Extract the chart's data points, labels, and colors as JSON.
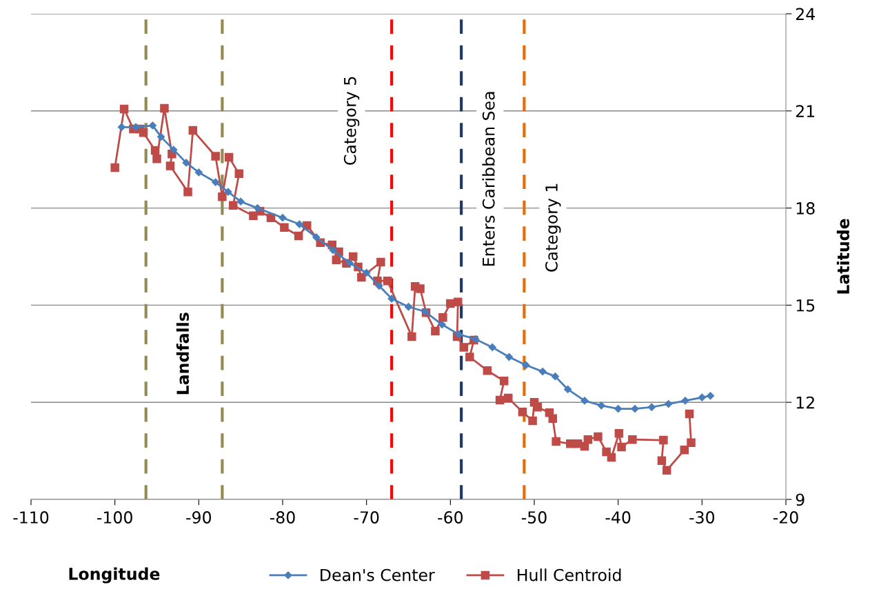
{
  "chart_data": {
    "type": "line",
    "xlabel": "Longitude",
    "ylabel": "Latitude",
    "xlim": [
      -110,
      -20
    ],
    "xticks": [
      -110,
      -100,
      -90,
      -80,
      -70,
      -60,
      -50,
      -40,
      -30,
      -20
    ],
    "ylim": [
      9,
      24
    ],
    "yticks": [
      9,
      12,
      15,
      18,
      21,
      24
    ],
    "grid": "y",
    "legend": "bottom",
    "line_style": "solid",
    "series": [
      {
        "name": "Dean's Center",
        "color": "#4a7ebb",
        "marker": "diamond",
        "x": [
          -29,
          -30,
          -32,
          -34,
          -36,
          -38,
          -40,
          -42,
          -44,
          -46,
          -47.5,
          -49,
          -51,
          -53,
          -55,
          -57,
          -59,
          -61,
          -63,
          -65,
          -67,
          -68.5,
          -70,
          -72,
          -74,
          -76,
          -78,
          -80,
          -83,
          -85,
          -86.5,
          -88,
          -90,
          -91.5,
          -93,
          -94.5,
          -95.5,
          -97.5,
          -99.2
        ],
        "values": [
          12.2,
          12.15,
          12.05,
          11.95,
          11.85,
          11.8,
          11.8,
          11.9,
          12.05,
          12.4,
          12.8,
          12.95,
          13.15,
          13.4,
          13.7,
          13.95,
          14.1,
          14.4,
          14.8,
          14.95,
          15.2,
          15.6,
          16.0,
          16.3,
          16.7,
          17.1,
          17.5,
          17.7,
          18.0,
          18.2,
          18.5,
          18.8,
          19.1,
          19.4,
          19.8,
          20.2,
          20.55,
          20.5,
          20.5
        ]
      },
      {
        "name": "Hull Centroid",
        "color": "#be4b48",
        "marker": "square",
        "x": [
          -31.5,
          -31.3,
          -32.1,
          -34.2,
          -34.8,
          -34.6,
          -38.3,
          -39.6,
          -39.9,
          -40.8,
          -41.4,
          -42.4,
          -43.6,
          -44.0,
          -44.8,
          -45.7,
          -47.4,
          -47.8,
          -48.2,
          -49.6,
          -50.0,
          -50.2,
          -51.4,
          -53.1,
          -54.1,
          -53.6,
          -55.6,
          -57.7,
          -57.2,
          -58.4,
          -59.2,
          -59.1,
          -60.0,
          -60.9,
          -61.8,
          -62.9,
          -63.6,
          -64.2,
          -64.6,
          -67.5,
          -68.7,
          -68.3,
          -70.6,
          -71.0,
          -71.6,
          -72.4,
          -73.6,
          -73.3,
          -74.1,
          -75.5,
          -77.1,
          -78.1,
          -79.8,
          -81.4,
          -82.7,
          -83.5,
          -85.9,
          -85.2,
          -86.4,
          -87.2,
          -88.0,
          -90.7,
          -91.3,
          -93.4,
          -93.2,
          -94.1,
          -95.0,
          -95.2,
          -96.6,
          -97.0,
          -97.8,
          -98.9,
          -100.0
        ],
        "values": [
          11.64,
          10.75,
          10.53,
          9.9,
          10.2,
          10.83,
          10.85,
          10.62,
          11.04,
          10.3,
          10.47,
          10.94,
          10.85,
          10.64,
          10.72,
          10.72,
          10.79,
          11.5,
          11.68,
          11.85,
          12.0,
          11.43,
          11.7,
          12.13,
          12.07,
          12.66,
          12.98,
          13.4,
          13.92,
          13.7,
          14.03,
          15.1,
          15.05,
          14.62,
          14.2,
          14.77,
          15.51,
          15.58,
          14.03,
          15.75,
          15.75,
          16.33,
          15.86,
          16.18,
          16.5,
          16.29,
          16.4,
          16.65,
          16.86,
          16.93,
          17.46,
          17.14,
          17.4,
          17.7,
          17.9,
          17.76,
          18.08,
          19.06,
          19.57,
          18.35,
          19.6,
          20.4,
          18.5,
          19.3,
          19.67,
          21.08,
          19.52,
          19.78,
          20.33,
          20.44,
          20.44,
          21.06,
          19.25
        ]
      }
    ],
    "ref_lines": [
      {
        "axis": "x",
        "value": -96.3,
        "label": "Landfalls",
        "color": "#948a54",
        "line_style": "dashed"
      },
      {
        "axis": "x",
        "value": -87.2,
        "color": "#948a54",
        "line_style": "dashed"
      },
      {
        "axis": "x",
        "value": -67.0,
        "label": "Category 5",
        "color": "#ff0000",
        "line_style": "dashed"
      },
      {
        "axis": "x",
        "value": -58.7,
        "label": "Enters Caribbean Sea",
        "color": "#1f3864",
        "line_style": "dashed"
      },
      {
        "axis": "x",
        "value": -51.2,
        "label": "Category 1",
        "color": "#e46c0a",
        "line_style": "dashed"
      }
    ]
  }
}
